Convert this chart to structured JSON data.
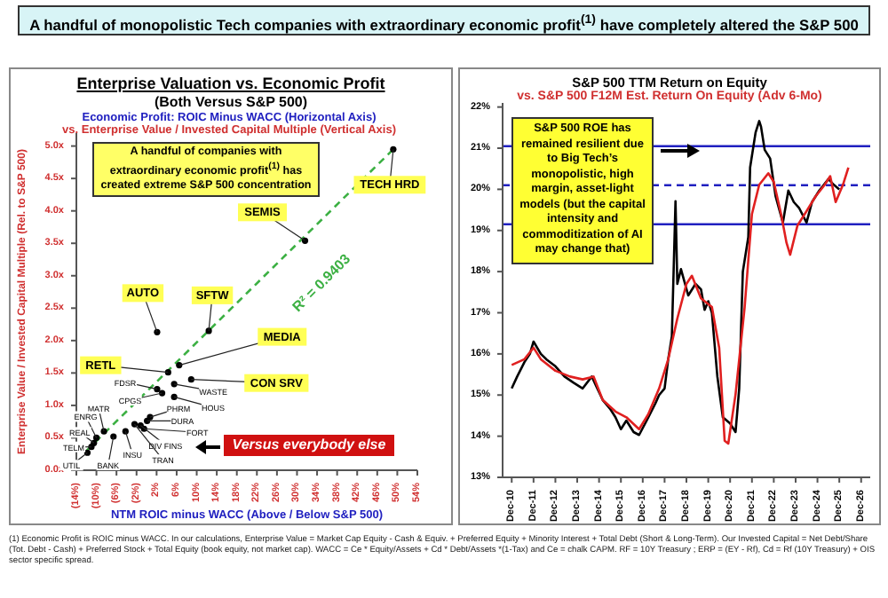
{
  "chart_data": [
    {
      "type": "scatter",
      "title": "Enterprise Valuation vs. Economic Profit",
      "subtitle": "(Both Versus S&P 500)",
      "xlabel": "NTM ROIC minus WACC (Above / Below S&P 500)",
      "ylabel": "Enterprise Value / Invested Capital Multiple (Rel. to S&P 500)",
      "xlim": [
        -14,
        54
      ],
      "ylim": [
        0,
        5.2
      ],
      "xticks": [
        {
          "value": -14,
          "label": "(14%)"
        },
        {
          "value": -10,
          "label": "(10%)"
        },
        {
          "value": -6,
          "label": "(6%)"
        },
        {
          "value": -2,
          "label": "(2%)"
        },
        {
          "value": 2,
          "label": "2%"
        },
        {
          "value": 6,
          "label": "6%"
        },
        {
          "value": 10,
          "label": "10%"
        },
        {
          "value": 14,
          "label": "14%"
        },
        {
          "value": 18,
          "label": "18%"
        },
        {
          "value": 22,
          "label": "22%"
        },
        {
          "value": 26,
          "label": "26%"
        },
        {
          "value": 30,
          "label": "30%"
        },
        {
          "value": 34,
          "label": "34%"
        },
        {
          "value": 38,
          "label": "38%"
        },
        {
          "value": 42,
          "label": "42%"
        },
        {
          "value": 46,
          "label": "46%"
        },
        {
          "value": 50,
          "label": "50%"
        },
        {
          "value": 54,
          "label": "54%"
        }
      ],
      "yticks": [
        {
          "value": 0,
          "label": "0.0x"
        },
        {
          "value": 0.5,
          "label": "0.5x"
        },
        {
          "value": 1,
          "label": "1.0x"
        },
        {
          "value": 1.5,
          "label": "1.5x"
        },
        {
          "value": 2,
          "label": "2.0x"
        },
        {
          "value": 2.5,
          "label": "2.5x"
        },
        {
          "value": 3,
          "label": "3.0x"
        },
        {
          "value": 3.5,
          "label": "3.5x"
        },
        {
          "value": 4,
          "label": "4.0x"
        },
        {
          "value": 4.5,
          "label": "4.5x"
        },
        {
          "value": 5,
          "label": "5.0x"
        }
      ],
      "marker": "circle",
      "series": [
        {
          "color": "#000000",
          "x": [
            49.2,
            31.6,
            2.1,
            12.4,
            6.5,
            4.3,
            8.9,
            2.1,
            3.1,
            5.5,
            5.5,
            0.7,
            0.1,
            -0.5,
            -1.2,
            -2.4,
            -4.2,
            -6.6,
            -8.5,
            -10,
            -10.5,
            -11,
            -11.8
          ],
          "values": [
            4.95,
            3.54,
            2.13,
            2.15,
            1.62,
            1.51,
            1.4,
            1.25,
            1.19,
            1.33,
            1.13,
            0.82,
            0.76,
            0.64,
            0.69,
            0.71,
            0.6,
            0.52,
            0.6,
            0.5,
            0.42,
            0.36,
            0.27
          ]
        },
        {
          "type": "line",
          "color": "#3cb043",
          "line_style": "dashed",
          "marker": "none",
          "x": [
            -12,
            49.2
          ],
          "values": [
            0.3,
            4.95
          ]
        }
      ],
      "annotations": [
        "A handful of monopolistic Tech companies with extraordinary economic profit$^{(1)}$ have completely altered the S&P 500",
        "Economic Profit: ROIC Minus WACC (Horizontal Axis)",
        "vs. Enterprise Value / Invested Capital Multiple (Vertical Axis)",
        "A handful of companies with extraordinary economic profit$^{(1)}$ has created extreme S&P 500 concentration",
        "Versus everybody else",
        "(1) Economic Profit is ROIC minus WACC. In our calculations, Enterprise Value = Market Cap Equity - Cash & Equiv. + Preferred Equity + Minority Interest + Total Debt (Short & Long-Term). Our Invested Capital = Net Debt/Share (Tot. Debt - Cash) + Preferred Stock + Total Equity (book equity, not market cap). WACC = Ce * Equity/Assets + Cd * Debt/Assets *(1-Tax) and Ce = chalk CAPM. RF = 10Y Treasury ; ERP = (EY - Rf), Cd = Rf (10Y Treasury) + OIS sector specific spread.",
        {
          "text": "TECH HRD",
          "x": 49.2,
          "y": 4.95
        },
        {
          "text": "SEMIS",
          "x": 31.6,
          "y": 3.54
        },
        {
          "text": "AUTO",
          "x": 2.1,
          "y": 2.13
        },
        {
          "text": "SFTW",
          "x": 12.4,
          "y": 2.15
        },
        {
          "text": "MEDIA",
          "x": 6.5,
          "y": 1.62
        },
        {
          "text": "RETL",
          "x": 4.3,
          "y": 1.51
        },
        {
          "text": "CON SRV",
          "x": 8.9,
          "y": 1.4
        },
        {
          "text": "FDSR",
          "x": 2.1,
          "y": 1.25
        },
        {
          "text": "CPGS",
          "x": 3.1,
          "y": 1.19
        },
        {
          "text": "WASTE",
          "x": 5.5,
          "y": 1.33
        },
        {
          "text": "HOUS",
          "x": 5.5,
          "y": 1.13
        },
        {
          "text": "PHRM",
          "x": 0.7,
          "y": 0.82
        },
        {
          "text": "DURA",
          "x": 0.1,
          "y": 0.76
        },
        {
          "text": "FORT",
          "x": -0.5,
          "y": 0.64
        },
        {
          "text": "DIV FINS",
          "x": -1.2,
          "y": 0.69
        },
        {
          "text": "TRAN",
          "x": -2.4,
          "y": 0.71
        },
        {
          "text": "INSU",
          "x": -4.2,
          "y": 0.6
        },
        {
          "text": "BANK",
          "x": -6.6,
          "y": 0.52
        },
        {
          "text": "MATR",
          "x": -8.5,
          "y": 0.6
        },
        {
          "text": "ENRG",
          "x": -10,
          "y": 0.5
        },
        {
          "text": "REAL",
          "x": -10.5,
          "y": 0.42
        },
        {
          "text": "TELM",
          "x": -11,
          "y": 0.36
        },
        {
          "text": "UTIL",
          "x": -11.8,
          "y": 0.27
        },
        "R² = 0.9403"
      ]
    },
    {
      "type": "line",
      "title": "S&P 500 TTM Return on Equity",
      "subtitle": "vs. S&P 500 F12M Est. Return On Equity (Adv 6-Mo)",
      "xlim": [
        "2010-07",
        "2027-05"
      ],
      "ylim": [
        13,
        22.1
      ],
      "xticks": [
        {
          "value": "2010-12",
          "label": "Dec-10"
        },
        {
          "value": "2011-12",
          "label": "Dec-11"
        },
        {
          "value": "2012-12",
          "label": "Dec-12"
        },
        {
          "value": "2013-12",
          "label": "Dec-13"
        },
        {
          "value": "2014-12",
          "label": "Dec-14"
        },
        {
          "value": "2015-12",
          "label": "Dec-15"
        },
        {
          "value": "2016-12",
          "label": "Dec-16"
        },
        {
          "value": "2017-12",
          "label": "Dec-17"
        },
        {
          "value": "2018-12",
          "label": "Dec-18"
        },
        {
          "value": "2019-12",
          "label": "Dec-19"
        },
        {
          "value": "2020-12",
          "label": "Dec-20"
        },
        {
          "value": "2021-12",
          "label": "Dec-21"
        },
        {
          "value": "2022-12",
          "label": "Dec-22"
        },
        {
          "value": "2023-12",
          "label": "Dec-23"
        },
        {
          "value": "2024-12",
          "label": "Dec-24"
        },
        {
          "value": "2025-12",
          "label": "Dec-25"
        },
        {
          "value": "2026-12",
          "label": "Dec-26"
        }
      ],
      "yticks": [
        {
          "value": 13,
          "label": "13%"
        },
        {
          "value": 14,
          "label": "14%"
        },
        {
          "value": 15,
          "label": "15%"
        },
        {
          "value": 16,
          "label": "16%"
        },
        {
          "value": 17,
          "label": "17%"
        },
        {
          "value": 18,
          "label": "18%"
        },
        {
          "value": 19,
          "label": "19%"
        },
        {
          "value": 20,
          "label": "20%"
        },
        {
          "value": 21,
          "label": "21%"
        },
        {
          "value": 22,
          "label": "22%"
        }
      ],
      "line_style": "solid",
      "series": [
        {
          "color": "#000000",
          "x": [
            "2010-12",
            "2011-03",
            "2011-07",
            "2011-10",
            "2011-12",
            "2012-04",
            "2012-07",
            "2012-12",
            "2013-05",
            "2013-10",
            "2014-03",
            "2014-08",
            "2014-11",
            "2015-02",
            "2015-06",
            "2015-09",
            "2015-12",
            "2016-03",
            "2016-07",
            "2016-10",
            "2017-03",
            "2017-07",
            "2017-09",
            "2017-12",
            "2018-02",
            "2018-04",
            "2018-06",
            "2018-07",
            "2018-09",
            "2019-01",
            "2019-05",
            "2019-08",
            "2019-10",
            "2019-12",
            "2020-02",
            "2020-05",
            "2020-08",
            "2020-12",
            "2021-03",
            "2021-05",
            "2021-07",
            "2021-10",
            "2021-11",
            "2022-02",
            "2022-04",
            "2022-05",
            "2022-07",
            "2022-10",
            "2023-01",
            "2023-05",
            "2023-08",
            "2023-11",
            "2024-02",
            "2024-06",
            "2024-09",
            "2025-01",
            "2025-06",
            "2025-09",
            "2025-12"
          ],
          "values": [
            15.16,
            15.45,
            15.8,
            16.0,
            16.3,
            16.0,
            15.87,
            15.7,
            15.45,
            15.3,
            15.16,
            15.45,
            15.16,
            14.88,
            14.67,
            14.46,
            14.17,
            14.38,
            14.1,
            14.03,
            14.45,
            14.8,
            15.0,
            15.16,
            15.87,
            16.43,
            19.71,
            17.7,
            18.06,
            17.42,
            17.7,
            17.57,
            17.07,
            17.28,
            17.0,
            15.45,
            14.46,
            14.31,
            14.1,
            15.16,
            18.0,
            18.84,
            20.53,
            21.38,
            21.66,
            21.52,
            20.96,
            20.75,
            19.83,
            19.19,
            19.97,
            19.69,
            19.54,
            19.19,
            19.69,
            19.97,
            20.25,
            20.11,
            20.0
          ]
        },
        {
          "color": "#e02020",
          "x": [
            "2010-12",
            "2011-07",
            "2011-12",
            "2012-04",
            "2012-12",
            "2013-08",
            "2014-03",
            "2014-09",
            "2015-02",
            "2015-09",
            "2016-03",
            "2016-10",
            "2017-03",
            "2017-09",
            "2018-02",
            "2018-07",
            "2018-12",
            "2019-03",
            "2019-08",
            "2020-02",
            "2020-06",
            "2020-09",
            "2020-11",
            "2021-03",
            "2021-08",
            "2021-12",
            "2022-04",
            "2022-09",
            "2022-12",
            "2023-04",
            "2023-07",
            "2023-09",
            "2024-01",
            "2024-06",
            "2024-11",
            "2025-04",
            "2025-07",
            "2025-10",
            "2026-02",
            "2026-05"
          ],
          "values": [
            15.73,
            15.87,
            16.15,
            15.87,
            15.59,
            15.45,
            15.38,
            15.45,
            14.88,
            14.6,
            14.46,
            14.17,
            14.53,
            15.16,
            15.87,
            16.86,
            17.7,
            17.9,
            17.35,
            17.14,
            16.15,
            13.89,
            13.82,
            15.02,
            17.14,
            19.4,
            20.11,
            20.39,
            20.18,
            19.4,
            18.7,
            18.41,
            19.12,
            19.47,
            19.83,
            20.11,
            20.32,
            19.69,
            20.11,
            20.53
          ]
        }
      ],
      "ref_lines": [
        {
          "axis": "y",
          "value": 21.05,
          "color": "#2020c0"
        },
        {
          "axis": "y",
          "value": 20.1,
          "color": "#2020c0",
          "line_style": "dashed"
        },
        {
          "axis": "y",
          "value": 19.15,
          "color": "#2020c0"
        }
      ],
      "annotations": [
        "S&P 500 ROE has remained resilient due to Big Tech’s monopolistic, high margin, asset-light models (but the capital intensity and commoditization of AI may change that)"
      ]
    }
  ]
}
